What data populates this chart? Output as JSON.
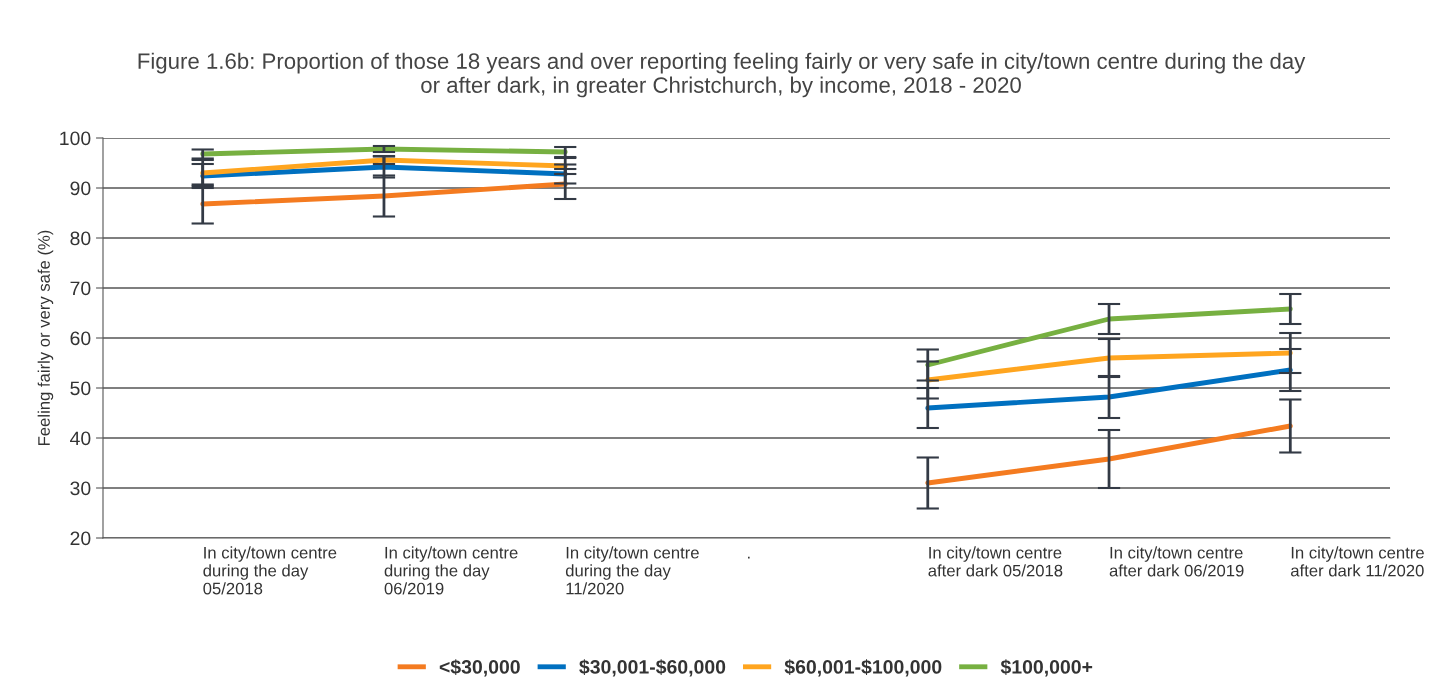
{
  "chart_data": {
    "type": "line",
    "title": "Figure 1.6b: Proportion of those 18 years and over reporting feeling fairly or very safe in city/town centre during the day\nor after dark, in greater Christchurch, by income, 2018 - 2020",
    "ylabel": "Feeling fairly or very safe (%)",
    "categories": [
      "In city/town centre\nduring the day\n05/2018",
      "In city/town centre\nduring the day\n06/2019",
      "In city/town centre\nduring the day\n11/2020",
      ".",
      "In city/town centre\nafter dark 05/2018",
      "In city/town centre\nafter dark 06/2019",
      "In city/town centre\nafter dark 11/2020"
    ],
    "series": [
      {
        "name": "<$30,000",
        "color": "#f47b20",
        "values": [
          86.8,
          88.4,
          90.8,
          null,
          31.0,
          35.8,
          42.4
        ],
        "errors": [
          3.9,
          4.1,
          3.0,
          null,
          5.1,
          5.8,
          5.3
        ]
      },
      {
        "name": "$30,001-$60,000",
        "color": "#0070c0",
        "values": [
          92.4,
          94.2,
          92.8,
          null,
          46.0,
          48.2,
          53.6
        ],
        "errors": [
          2.4,
          2.1,
          1.9,
          null,
          4.0,
          4.2,
          4.2
        ]
      },
      {
        "name": "$60,001-$100,000",
        "color": "#ffa51f",
        "values": [
          93.0,
          95.6,
          94.4,
          null,
          51.6,
          56.0,
          57.0
        ],
        "errors": [
          2.6,
          0.8,
          1.6,
          null,
          3.7,
          3.8,
          4.0
        ]
      },
      {
        "name": "$100,000+",
        "color": "#77b041",
        "values": [
          96.8,
          97.8,
          97.2,
          null,
          54.6,
          63.8,
          65.8
        ],
        "errors": [
          0.9,
          0.6,
          1.0,
          null,
          3.1,
          3.0,
          3.0
        ]
      }
    ],
    "ylim": [
      20,
      100
    ],
    "yticks": [
      20,
      30,
      40,
      50,
      60,
      70,
      80,
      90,
      100
    ],
    "grid": "y",
    "legend": "bottom",
    "marker": "none",
    "line_style": "solid"
  }
}
